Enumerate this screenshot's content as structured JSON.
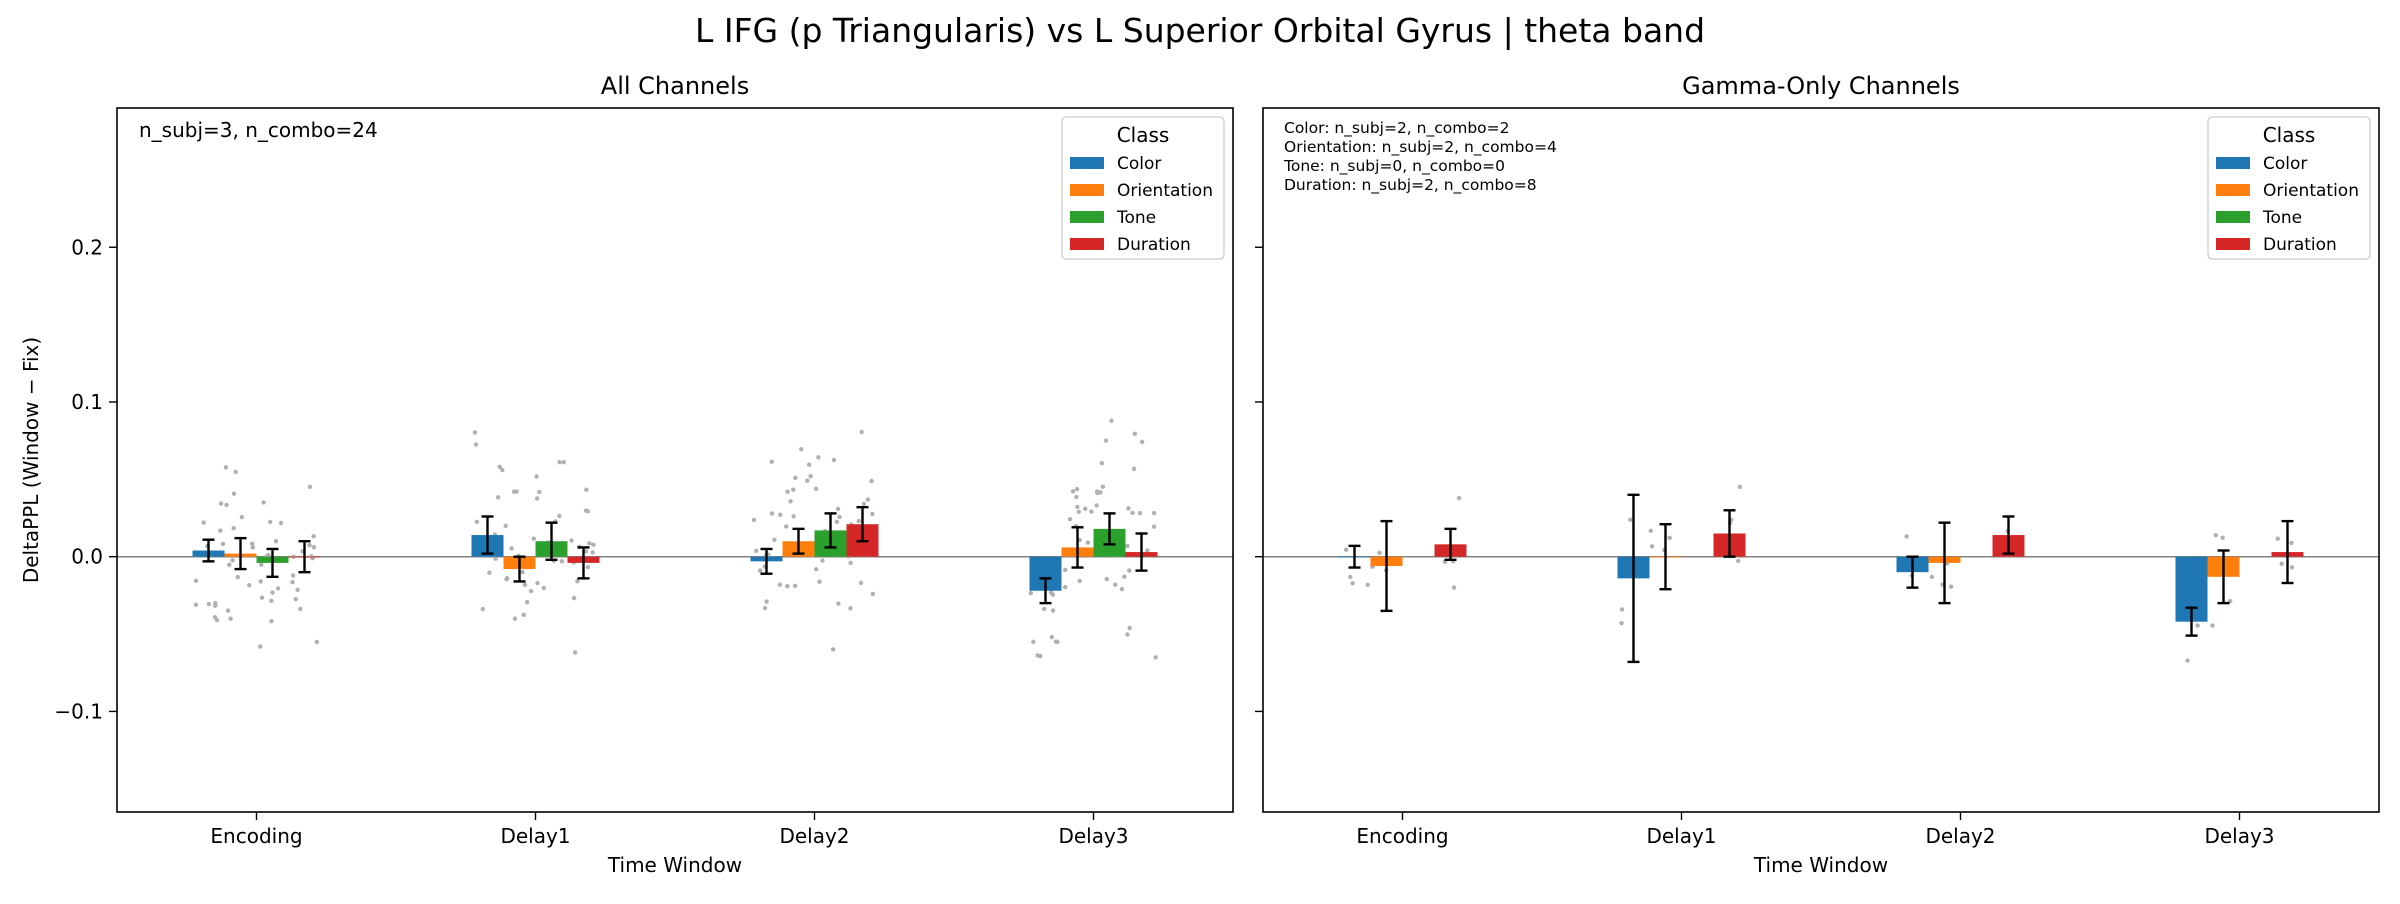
{
  "figure": {
    "title": "L IFG (p Triangularis) vs L Superior Orbital Gyrus  |  theta band",
    "ylabel": "DeltaPPL (Window − Fix)"
  },
  "chart_data": [
    {
      "type": "bar",
      "title": "All Channels",
      "xlabel": "Time Window",
      "ylabel": "DeltaPPL (Window − Fix)",
      "categories": [
        "Encoding",
        "Delay1",
        "Delay2",
        "Delay3"
      ],
      "ylim": [
        -0.165,
        0.29
      ],
      "yticks": [
        -0.1,
        0.0,
        0.1,
        0.2
      ],
      "ytick_labels": [
        "−0.1",
        "0.0",
        "0.1",
        "0.2"
      ],
      "zero_line": true,
      "grid": false,
      "legend": {
        "title": "Class",
        "placement": "top-right"
      },
      "annotation": [
        "n_subj=3, n_combo=24"
      ],
      "series": [
        {
          "name": "Color",
          "color": "#1f77b4",
          "values": [
            0.004,
            0.014,
            -0.003,
            -0.022
          ],
          "err": [
            0.007,
            0.012,
            0.008,
            0.008
          ]
        },
        {
          "name": "Orientation",
          "color": "#ff7f0e",
          "values": [
            0.002,
            -0.008,
            0.01,
            0.006
          ],
          "err": [
            0.01,
            0.008,
            0.008,
            0.013
          ]
        },
        {
          "name": "Tone",
          "color": "#2ca02c",
          "values": [
            -0.004,
            0.01,
            0.017,
            0.018
          ],
          "err": [
            0.009,
            0.012,
            0.011,
            0.01
          ]
        },
        {
          "name": "Duration",
          "color": "#d62728",
          "values": [
            0.0,
            -0.004,
            0.021,
            0.003
          ],
          "err": [
            0.01,
            0.01,
            0.011,
            0.012
          ]
        }
      ]
    },
    {
      "type": "bar",
      "title": "Gamma-Only Channels",
      "xlabel": "Time Window",
      "categories": [
        "Encoding",
        "Delay1",
        "Delay2",
        "Delay3"
      ],
      "ylim": [
        -0.165,
        0.29
      ],
      "yticks": [
        -0.1,
        0.0,
        0.1,
        0.2
      ],
      "zero_line": true,
      "grid": false,
      "legend": {
        "title": "Class",
        "placement": "top-right"
      },
      "annotation": [
        "Color: n_subj=2, n_combo=2",
        "Orientation: n_subj=2, n_combo=4",
        "Tone: n_subj=0, n_combo=0",
        "Duration: n_subj=2, n_combo=8"
      ],
      "series": [
        {
          "name": "Color",
          "color": "#1f77b4",
          "values": [
            0.0,
            -0.014,
            -0.01,
            -0.042
          ],
          "err": [
            0.007,
            0.054,
            0.01,
            0.009
          ]
        },
        {
          "name": "Orientation",
          "color": "#ff7f0e",
          "values": [
            -0.006,
            0.0,
            -0.004,
            -0.013
          ],
          "err": [
            0.029,
            0.021,
            0.026,
            0.017
          ]
        },
        {
          "name": "Tone",
          "color": "#2ca02c",
          "values": [
            null,
            null,
            null,
            null
          ],
          "err": [
            null,
            null,
            null,
            null
          ]
        },
        {
          "name": "Duration",
          "color": "#d62728",
          "values": [
            0.008,
            0.015,
            0.014,
            0.003
          ],
          "err": [
            0.01,
            0.015,
            0.012,
            0.02
          ]
        }
      ]
    }
  ]
}
